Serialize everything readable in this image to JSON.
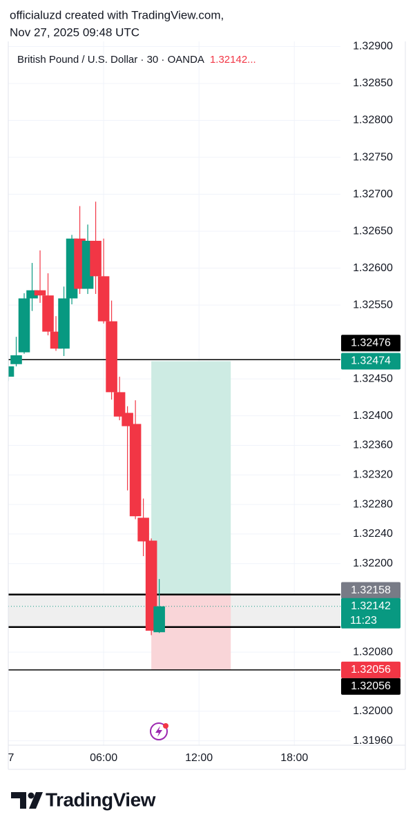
{
  "header": {
    "line1": "officialuzd created with TradingView.com,",
    "line2": "Nov 27, 2025 09:48 UTC"
  },
  "chart_data": {
    "type": "candlestick",
    "title": "British Pound / U.S. Dollar · 30 · OANDA",
    "title_value": "1.32142...",
    "x": [
      0,
      0.5,
      1,
      1.5,
      2,
      2.5,
      3,
      3.5,
      4,
      4.5,
      5,
      5.5,
      6,
      6.5,
      7,
      7.5,
      8,
      8.5,
      9,
      9.5
    ],
    "open": [
      1.32453,
      1.3247,
      1.32486,
      1.32559,
      1.3257,
      1.32563,
      1.32514,
      1.32491,
      1.32559,
      1.3264,
      1.32572,
      1.32637,
      1.32589,
      1.32528,
      1.32432,
      1.32404,
      1.32389,
      1.32262,
      1.32231,
      1.32107
    ],
    "high": [
      1.32477,
      1.32507,
      1.32566,
      1.32607,
      1.32624,
      1.32593,
      1.32535,
      1.32575,
      1.32645,
      1.32684,
      1.32659,
      1.3269,
      1.3264,
      1.32556,
      1.32453,
      1.32413,
      1.32421,
      1.32288,
      1.32234,
      1.32179
    ],
    "low": [
      1.32447,
      1.32467,
      1.32484,
      1.32542,
      1.32553,
      1.32509,
      1.32488,
      1.32481,
      1.32551,
      1.32565,
      1.32565,
      1.32565,
      1.32525,
      1.32422,
      1.32394,
      1.32299,
      1.3226,
      1.3221,
      1.32103,
      1.32106
    ],
    "close": [
      1.32467,
      1.32482,
      1.32559,
      1.3257,
      1.32563,
      1.32514,
      1.32491,
      1.32559,
      1.3264,
      1.32572,
      1.32637,
      1.32589,
      1.32528,
      1.32432,
      1.32399,
      1.32386,
      1.32264,
      1.3223,
      1.32109,
      1.32142
    ],
    "up_color": "#089981",
    "down_color": "#f23645",
    "xlim": [
      0,
      20.9
    ],
    "xticks": [
      {
        "value": 0,
        "label": "7"
      },
      {
        "value": 6,
        "label": "06:00"
      },
      {
        "value": 12,
        "label": "12:00"
      },
      {
        "value": 18,
        "label": "18:00"
      }
    ],
    "ylim": [
      1.31954,
      1.32907
    ],
    "yticks": [
      {
        "value": 1.329,
        "label": "1.32900"
      },
      {
        "value": 1.3285,
        "label": "1.32850"
      },
      {
        "value": 1.328,
        "label": "1.32800"
      },
      {
        "value": 1.3275,
        "label": "1.32750"
      },
      {
        "value": 1.327,
        "label": "1.32700"
      },
      {
        "value": 1.3265,
        "label": "1.32650"
      },
      {
        "value": 1.326,
        "label": "1.32600"
      },
      {
        "value": 1.3255,
        "label": "1.32550"
      },
      {
        "value": 1.3245,
        "label": "1.32450"
      },
      {
        "value": 1.324,
        "label": "1.32400"
      },
      {
        "value": 1.3236,
        "label": "1.32360"
      },
      {
        "value": 1.3232,
        "label": "1.32320"
      },
      {
        "value": 1.3228,
        "label": "1.32280"
      },
      {
        "value": 1.3224,
        "label": "1.32240"
      },
      {
        "value": 1.322,
        "label": "1.32200"
      },
      {
        "value": 1.3208,
        "label": "1.32080"
      },
      {
        "value": 1.32,
        "label": "1.32000"
      },
      {
        "value": 1.3196,
        "label": "1.31960"
      }
    ],
    "grid": true,
    "lines": [
      {
        "value": 1.32476,
        "label": "1.32476",
        "width": 1.5
      },
      {
        "value": 1.32158,
        "width": 2.5
      },
      {
        "value": 1.32114,
        "width": 2.5
      },
      {
        "value": 1.32056,
        "label": "1.32056",
        "width": 1.5
      }
    ],
    "band": {
      "from": 1.32158,
      "to": 1.32114,
      "color": "#efefef"
    },
    "position": {
      "x": [
        9,
        14
      ],
      "entry": {
        "value": 1.32158,
        "label": "1.32158"
      },
      "target": {
        "value": 1.32474,
        "label": "1.32474"
      },
      "stop": {
        "value": 1.32056,
        "label": "1.32056"
      },
      "profit_color": "#cdebe3",
      "loss_color": "#f9d5d8"
    },
    "last": {
      "value": 1.32142,
      "label": "1.32142",
      "countdown": "11:23"
    }
  },
  "footer": {
    "brand": "TradingView"
  }
}
